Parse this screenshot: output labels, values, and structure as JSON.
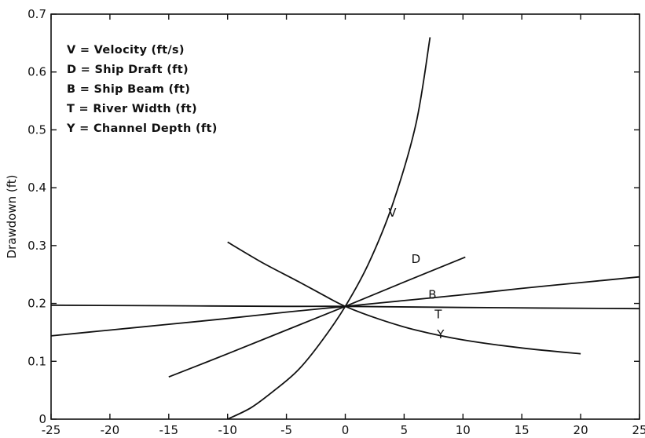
{
  "chart_data": {
    "type": "line",
    "title": "",
    "xlabel": "",
    "ylabel": "Drawdown (ft)",
    "xlim": [
      -25,
      25
    ],
    "ylim": [
      0,
      0.7
    ],
    "grid": false,
    "x_ticks": [
      "-25",
      "-20",
      "-15",
      "-10",
      "-5",
      "0",
      "5",
      "10",
      "15",
      "20",
      "25"
    ],
    "y_ticks": [
      "0",
      "0.1",
      "0.2",
      "0.3",
      "0.4",
      "0.5",
      "0.6",
      "0.7"
    ],
    "legend_placement": "top-left",
    "legend": [
      "V = Velocity (ft/s)",
      "D = Ship Draft (ft)",
      "B = Ship Beam (ft)",
      "T = River Width (ft)",
      "Y = Channel Depth (ft)"
    ],
    "series": [
      {
        "name": "V",
        "label_at": [
          4,
          0.35
        ],
        "points": [
          [
            -10,
            0.0
          ],
          [
            -8,
            0.02
          ],
          [
            -6,
            0.05
          ],
          [
            -4,
            0.085
          ],
          [
            -2,
            0.135
          ],
          [
            0,
            0.195
          ],
          [
            2,
            0.27
          ],
          [
            4,
            0.37
          ],
          [
            6,
            0.51
          ],
          [
            7.2,
            0.66
          ]
        ]
      },
      {
        "name": "D",
        "label_at": [
          6,
          0.27
        ],
        "points": [
          [
            -15,
            0.073
          ],
          [
            -10,
            0.113
          ],
          [
            -5,
            0.154
          ],
          [
            0,
            0.195
          ],
          [
            5,
            0.237
          ],
          [
            10.2,
            0.28
          ]
        ]
      },
      {
        "name": "B",
        "label_at": [
          7.4,
          0.208
        ],
        "points": [
          [
            -25,
            0.144
          ],
          [
            -20,
            0.154
          ],
          [
            -15,
            0.164
          ],
          [
            -10,
            0.174
          ],
          [
            -5,
            0.185
          ],
          [
            0,
            0.195
          ],
          [
            5,
            0.205
          ],
          [
            10,
            0.215
          ],
          [
            15,
            0.226
          ],
          [
            20,
            0.236
          ],
          [
            25,
            0.246
          ]
        ]
      },
      {
        "name": "T",
        "label_at": [
          7.9,
          0.174
        ],
        "points": [
          [
            -25,
            0.197
          ],
          [
            -15,
            0.196
          ],
          [
            -5,
            0.195
          ],
          [
            0,
            0.195
          ],
          [
            10,
            0.193
          ],
          [
            25,
            0.191
          ]
        ]
      },
      {
        "name": "Y",
        "label_at": [
          8.1,
          0.14
        ],
        "points": [
          [
            -10,
            0.306
          ],
          [
            -7,
            0.27
          ],
          [
            -4,
            0.238
          ],
          [
            -2,
            0.216
          ],
          [
            0,
            0.195
          ],
          [
            3,
            0.172
          ],
          [
            6,
            0.154
          ],
          [
            10,
            0.137
          ],
          [
            15,
            0.123
          ],
          [
            20,
            0.113
          ]
        ]
      }
    ]
  }
}
